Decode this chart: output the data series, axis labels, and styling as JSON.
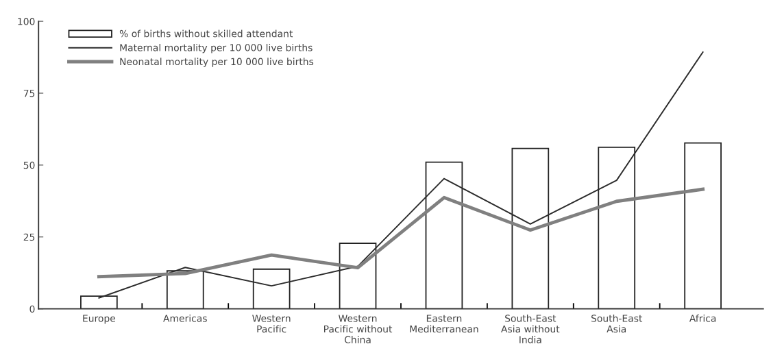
{
  "chart_data": {
    "type": "bar",
    "categories": [
      "Europe",
      "Americas",
      "Western\nPacific",
      "Western\nPacific without\nChina",
      "Eastern\nMediterranean",
      "South-East\nAsia without\nIndia",
      "South-East\nAsia",
      "Africa"
    ],
    "series": [
      {
        "name": "% of births without skilled attendant",
        "color": "#ffffff",
        "values": [
          4.4,
          13.2,
          13.8,
          22.8,
          51.0,
          55.8,
          56.2,
          57.7
        ]
      },
      {
        "name": "Maternal mortality per 10 000 live births",
        "type": "line",
        "color": "#2b2b2b",
        "values": [
          3.8,
          14.4,
          8.0,
          14.8,
          45.3,
          29.5,
          44.7,
          89.3
        ]
      },
      {
        "name": "Neonatal mortality per 10 000 live births",
        "type": "line",
        "color": "#808080",
        "values": [
          11.2,
          12.3,
          18.7,
          14.3,
          38.7,
          27.4,
          37.4,
          41.6
        ]
      }
    ],
    "ylim": [
      0,
      100
    ],
    "yticks": [
      0,
      25,
      50,
      75,
      100
    ],
    "grid": false,
    "legend": "top left",
    "marker": "none",
    "line_style": "solid"
  }
}
